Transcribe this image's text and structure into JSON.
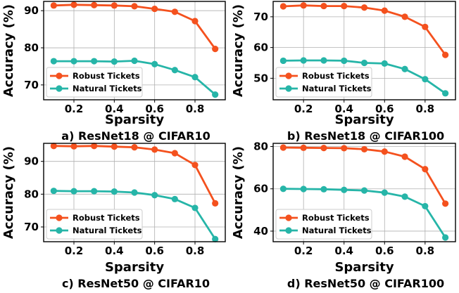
{
  "chart_data": [
    {
      "type": "line",
      "caption": "a) ResNet18 @ CIFAR10",
      "xlabel": "Sparsity",
      "ylabel": "Accuracy (%)",
      "x": [
        0.1,
        0.2,
        0.3,
        0.4,
        0.5,
        0.6,
        0.7,
        0.8,
        0.9
      ],
      "xlim": [
        0.05,
        0.95
      ],
      "ylim": [
        66.0,
        92.5
      ],
      "xticks": [
        "0.2",
        "0.4",
        "0.6",
        "0.8"
      ],
      "yticks": [
        "70",
        "80",
        "90"
      ],
      "grid": true,
      "legend_position": "lower-left",
      "series": [
        {
          "name": "Robust Tickets",
          "color": "#f4511e",
          "values": [
            91.4,
            91.6,
            91.5,
            91.4,
            91.2,
            90.5,
            89.7,
            87.2,
            79.7
          ]
        },
        {
          "name": "Natural Tickets",
          "color": "#26b5a8",
          "values": [
            76.4,
            76.4,
            76.4,
            76.3,
            76.5,
            75.6,
            74.0,
            72.1,
            67.4
          ]
        }
      ]
    },
    {
      "type": "line",
      "caption": "b) ResNet18 @ CIFAR100",
      "xlabel": "Sparsity",
      "ylabel": "Accuracy (%)",
      "x": [
        0.1,
        0.2,
        0.3,
        0.4,
        0.5,
        0.6,
        0.7,
        0.8,
        0.9
      ],
      "xlim": [
        0.05,
        0.95
      ],
      "ylim": [
        43.0,
        75.0
      ],
      "xticks": [
        "0.2",
        "0.4",
        "0.6",
        "0.8"
      ],
      "yticks": [
        "50",
        "60",
        "70"
      ],
      "grid": true,
      "legend_position": "lower-left",
      "series": [
        {
          "name": "Robust Tickets",
          "color": "#f4511e",
          "values": [
            73.4,
            73.7,
            73.5,
            73.5,
            73.0,
            72.0,
            70.0,
            66.7,
            57.6
          ]
        },
        {
          "name": "Natural Tickets",
          "color": "#26b5a8",
          "values": [
            55.7,
            55.8,
            55.8,
            55.7,
            55.0,
            54.8,
            53.0,
            49.7,
            45.1
          ]
        }
      ]
    },
    {
      "type": "line",
      "caption": "c) ResNet50 @ CIFAR10",
      "xlabel": "Sparsity",
      "ylabel": "Accuracy (%)",
      "x": [
        0.1,
        0.2,
        0.3,
        0.4,
        0.5,
        0.6,
        0.7,
        0.8,
        0.9
      ],
      "xlim": [
        0.05,
        0.95
      ],
      "ylim": [
        65.5,
        95.5
      ],
      "xticks": [
        "0.2",
        "0.4",
        "0.6",
        "0.8"
      ],
      "yticks": [
        "70",
        "80",
        "90"
      ],
      "grid": true,
      "legend_position": "lower-left",
      "series": [
        {
          "name": "Robust Tickets",
          "color": "#f4511e",
          "values": [
            94.7,
            94.6,
            94.7,
            94.5,
            94.3,
            93.6,
            92.5,
            88.9,
            77.2
          ]
        },
        {
          "name": "Natural Tickets",
          "color": "#26b5a8",
          "values": [
            81.0,
            80.9,
            80.9,
            80.8,
            80.5,
            79.7,
            78.5,
            75.8,
            66.3
          ]
        }
      ]
    },
    {
      "type": "line",
      "caption": "d) ResNet50 @ CIFAR100",
      "xlabel": "Sparsity",
      "ylabel": "Accuracy (%)",
      "x": [
        0.1,
        0.2,
        0.3,
        0.4,
        0.5,
        0.6,
        0.7,
        0.8,
        0.9
      ],
      "xlim": [
        0.05,
        0.95
      ],
      "ylim": [
        35.0,
        81.5
      ],
      "xticks": [
        "0.2",
        "0.4",
        "0.6",
        "0.8"
      ],
      "yticks": [
        "40",
        "60",
        "80"
      ],
      "grid": true,
      "legend_position": "lower-left",
      "series": [
        {
          "name": "Robust Tickets",
          "color": "#f4511e",
          "values": [
            79.5,
            79.4,
            79.3,
            79.2,
            78.7,
            77.6,
            75.2,
            69.3,
            53.0
          ]
        },
        {
          "name": "Natural Tickets",
          "color": "#26b5a8",
          "values": [
            60.0,
            59.9,
            59.8,
            59.5,
            59.2,
            58.2,
            56.3,
            51.8,
            37.0
          ]
        }
      ]
    }
  ]
}
